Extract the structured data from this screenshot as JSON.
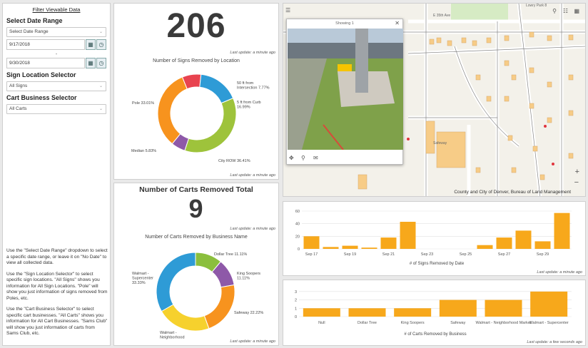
{
  "filter": {
    "title": "Filter Viewable Data",
    "date_range_heading": "Select Date Range",
    "date_range_select": "Select Date Range",
    "start_date": "9/17/2018",
    "dash": "-",
    "end_date": "9/30/2018",
    "sign_heading": "Sign Location Selector",
    "sign_select": "All Signs",
    "cart_heading": "Cart Business Selector",
    "cart_select": "All Carts",
    "help": [
      "Use the \"Select Date Range\" dropdown to select a specific date range, or leave it on \"No Date\" to view all collected data.",
      "Use the \"Sign Location Selector\" to select specific sign locations. \"All Signs\" shows you information for All Sign Locations. \"Pole\" will show you just information of signs removed from Poles, etc.",
      "Use the \"Cart Business Selector\" to select specific cart businesses. \"All Carts\" shows you information for All Cart Businesses. \"Sams Club\" will show you just information of carts from Sams Club, etc."
    ]
  },
  "signs": {
    "count": "206",
    "count_update": "Last update: a minute ago",
    "donut_title": "Number of Signs Removed by Location",
    "donut_update": "Last update: a minute ago"
  },
  "carts": {
    "heading": "Number of Carts Removed Total",
    "count": "9",
    "count_update": "Last update: a minute ago",
    "donut_title": "Number of Carts Removed by Business Name",
    "donut_update": "Last update: a minute ago"
  },
  "map": {
    "popup_title": "Showing 1",
    "attribution": "County and City of Denver, Bureau of Land Management",
    "street_labels": [
      "E 35th Ave",
      "Clinton St",
      "Florence St",
      "Florence St",
      "Olinton St",
      "Fulton St",
      "Sooners",
      "Safeway",
      "Lowry Park 8",
      "Lowry Park S"
    ]
  },
  "bar_signs": {
    "update": "Last update: a minute ago",
    "xlabel": "# of Signs Removed by Date"
  },
  "bar_carts": {
    "update": "Last update: a few seconds ago",
    "xlabel": "# of Carts Removed by Business"
  },
  "colors": {
    "orange": "#f7a81b",
    "donut_orange": "#f7931e",
    "blue": "#2e9bd6",
    "green": "#9ec33b",
    "purple": "#8e59a8",
    "red": "#e8434f",
    "yellow": "#f6d12d",
    "olive": "#8bbf3d"
  },
  "chart_data": [
    {
      "type": "pie",
      "title": "Number of Signs Removed by Location",
      "slices": [
        {
          "label": "50 ft from Intersection",
          "value": 7.77,
          "text": "50 ft from Intersection 7.77%",
          "color": "#e8434f"
        },
        {
          "label": "5 ft from Curb",
          "value": 16.99,
          "text": "5 ft from Curb 16.99%",
          "color": "#2e9bd6"
        },
        {
          "label": "City ROW",
          "value": 36.41,
          "text": "City ROW 36.41%",
          "color": "#9ec33b"
        },
        {
          "label": "Median",
          "value": 5.83,
          "text": "Median 5.83%",
          "color": "#8e59a8"
        },
        {
          "label": "Pole",
          "value": 33.01,
          "text": "Pole 33.01%",
          "color": "#f7931e"
        }
      ]
    },
    {
      "type": "pie",
      "title": "Number of Carts Removed by Business Name",
      "slices": [
        {
          "label": "Dollar Tree",
          "value": 11.11,
          "text": "Dollar Tree 11.11%",
          "color": "#8bbf3d"
        },
        {
          "label": "King Soopers",
          "value": 11.11,
          "text": "King Soopers 11.11%",
          "color": "#8e59a8"
        },
        {
          "label": "Safeway",
          "value": 22.22,
          "text": "Safeway 22.22%",
          "color": "#f7931e"
        },
        {
          "label": "Walmart - Neighborhood",
          "value": 22.22,
          "text": "Walmart - Neighborhood",
          "color": "#f6d12d"
        },
        {
          "label": "Walmart - Supercenter",
          "value": 33.33,
          "text": "Walmart - Supercenter 33.33%",
          "color": "#2e9bd6"
        }
      ]
    },
    {
      "type": "bar",
      "xlabel": "# of Signs Removed by Date",
      "categories": [
        "Sep 17",
        "Sep 18",
        "Sep 19",
        "Sep 20",
        "Sep 21",
        "Sep 22",
        "Sep 23",
        "Sep 24",
        "Sep 25",
        "Sep 26",
        "Sep 27",
        "Sep 28",
        "Sep 29",
        "Sep 30"
      ],
      "tick_labels": [
        "Sep 17",
        "Sep 19",
        "Sep 21",
        "Sep 23",
        "Sep 25",
        "Sep 27",
        "Sep 29"
      ],
      "values": [
        20,
        3,
        5,
        2,
        18,
        43,
        0,
        0,
        0,
        6,
        18,
        29,
        12,
        57
      ],
      "yticks": [
        0,
        20,
        40,
        60
      ],
      "ylim": [
        0,
        60
      ]
    },
    {
      "type": "bar",
      "xlabel": "# of Carts Removed by Business",
      "categories": [
        "Null",
        "Dollar Tree",
        "King Soopers",
        "Safeway",
        "Walmart - Neighborhood Market",
        "Walmart - Supercenter"
      ],
      "values": [
        1,
        1,
        1,
        2,
        2,
        3
      ],
      "yticks": [
        0,
        1,
        2,
        3
      ],
      "ylim": [
        0,
        3.5
      ]
    }
  ]
}
